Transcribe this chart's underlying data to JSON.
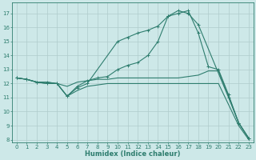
{
  "xlabel": "Humidex (Indice chaleur)",
  "xlim": [
    -0.5,
    23.5
  ],
  "ylim": [
    7.8,
    17.8
  ],
  "yticks": [
    8,
    9,
    10,
    11,
    12,
    13,
    14,
    15,
    16,
    17
  ],
  "xticks": [
    0,
    1,
    2,
    3,
    4,
    5,
    6,
    7,
    8,
    9,
    10,
    11,
    12,
    13,
    14,
    15,
    16,
    17,
    18,
    19,
    20,
    21,
    22,
    23
  ],
  "bg_color": "#cde8e8",
  "line_color": "#2e7d6e",
  "grid_color": "#b8d8d8",
  "lines": [
    {
      "x": [
        0,
        1,
        2,
        3,
        4,
        5,
        6,
        7,
        8,
        9,
        10,
        11,
        12,
        13,
        14,
        15,
        16,
        17,
        18,
        21,
        22,
        23
      ],
      "y": [
        12.4,
        12.3,
        12.1,
        12.1,
        12.0,
        11.1,
        11.8,
        12.2,
        12.4,
        12.5,
        13.0,
        13.3,
        13.5,
        14.0,
        15.0,
        16.8,
        17.2,
        17.0,
        16.2,
        11.0,
        9.2,
        8.1
      ],
      "marker": "+"
    },
    {
      "x": [
        0,
        1,
        2,
        3,
        4,
        5,
        6,
        7,
        8,
        9,
        10,
        11,
        12,
        13,
        14,
        15,
        16,
        17,
        18,
        19,
        20,
        21,
        22,
        23
      ],
      "y": [
        12.4,
        12.3,
        12.1,
        12.1,
        12.0,
        11.8,
        12.1,
        12.2,
        12.3,
        12.3,
        12.4,
        12.4,
        12.4,
        12.4,
        12.4,
        12.4,
        12.4,
        12.5,
        12.6,
        12.9,
        12.9,
        11.1,
        9.2,
        8.1
      ],
      "marker": null
    },
    {
      "x": [
        0,
        1,
        2,
        3,
        4,
        5,
        6,
        7,
        10,
        11,
        12,
        13,
        14,
        15,
        16,
        17,
        18,
        19,
        20,
        21,
        22,
        23
      ],
      "y": [
        12.4,
        12.3,
        12.1,
        12.0,
        12.0,
        11.1,
        11.7,
        12.0,
        15.0,
        15.3,
        15.6,
        15.8,
        16.1,
        16.8,
        17.0,
        17.2,
        15.6,
        13.2,
        13.0,
        11.2,
        9.2,
        8.1
      ],
      "marker": "+"
    },
    {
      "x": [
        0,
        1,
        2,
        3,
        4,
        5,
        6,
        7,
        8,
        9,
        10,
        11,
        12,
        13,
        14,
        15,
        16,
        17,
        18,
        19,
        20,
        21,
        22,
        23
      ],
      "y": [
        12.4,
        12.3,
        12.1,
        12.0,
        12.0,
        11.1,
        11.5,
        11.8,
        11.9,
        12.0,
        12.0,
        12.0,
        12.0,
        12.0,
        12.0,
        12.0,
        12.0,
        12.0,
        12.0,
        12.0,
        12.0,
        10.5,
        9.0,
        8.0
      ],
      "marker": null
    }
  ]
}
